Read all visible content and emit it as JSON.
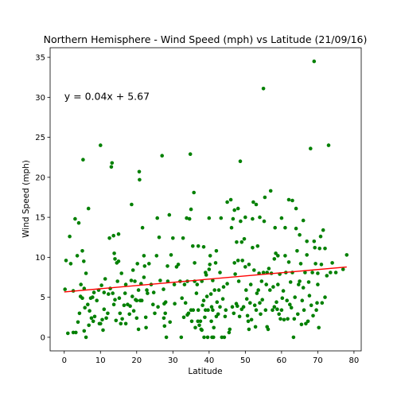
{
  "chart_data": {
    "type": "scatter",
    "title": "Northern Hemisphere - Wind Speed (mph) vs Latitude (21/09/16)",
    "xlabel": "Latitude",
    "ylabel": "Wind Speed (mph)",
    "xlim": [
      -3.9,
      82
    ],
    "ylim": [
      -1.7,
      36.2
    ],
    "xticks": [
      0,
      10,
      20,
      30,
      40,
      50,
      60,
      70,
      80
    ],
    "yticks": [
      0,
      5,
      10,
      15,
      20,
      25,
      30,
      35
    ],
    "grid": false,
    "colors": {
      "points": "#008000",
      "regression": "#ff0000",
      "annotation": "#ff0000"
    },
    "annotation": {
      "text": "y = 0.04x + 5.67",
      "x": 0,
      "y": 30.2
    },
    "regression": {
      "slope": 0.04,
      "intercept": 5.67,
      "x_range": [
        0,
        78
      ]
    },
    "points": [
      [
        0.2,
        6.0
      ],
      [
        0.5,
        9.6
      ],
      [
        1,
        0.5
      ],
      [
        1.5,
        12.6
      ],
      [
        1.8,
        9.2
      ],
      [
        2.5,
        5.8
      ],
      [
        2.5,
        0.6
      ],
      [
        3,
        14.8
      ],
      [
        3.2,
        0.6
      ],
      [
        3.6,
        10.2
      ],
      [
        3.8,
        1.9
      ],
      [
        4.0,
        14.3
      ],
      [
        4.2,
        3.0
      ],
      [
        4.5,
        5.1
      ],
      [
        4.6,
        6.6
      ],
      [
        5,
        4.9
      ],
      [
        5,
        10.8
      ],
      [
        5.2,
        22.2
      ],
      [
        5.4,
        9.5
      ],
      [
        5.5,
        6.1
      ],
      [
        5.5,
        0.8
      ],
      [
        5.7,
        3.7
      ],
      [
        6,
        0.0
      ],
      [
        6,
        8.0
      ],
      [
        6.5,
        4.1
      ],
      [
        6.7,
        16.1
      ],
      [
        6.8,
        1.5
      ],
      [
        7,
        3.3
      ],
      [
        7.3,
        4.9
      ],
      [
        7.5,
        2.4
      ],
      [
        7.8,
        5.0
      ],
      [
        8,
        2.0
      ],
      [
        8.2,
        5.6
      ],
      [
        8.4,
        2.6
      ],
      [
        9,
        4.6
      ],
      [
        9.5,
        5.9
      ],
      [
        9.7,
        1.7
      ],
      [
        10,
        24.0
      ],
      [
        10,
        1.7
      ],
      [
        10.3,
        6.5
      ],
      [
        10.5,
        2.2
      ],
      [
        10.7,
        0.9
      ],
      [
        11,
        3.5
      ],
      [
        11,
        5.6
      ],
      [
        11.3,
        7.3
      ],
      [
        11.6,
        2.4
      ],
      [
        12,
        3.0
      ],
      [
        12.2,
        5.4
      ],
      [
        12.5,
        12.4
      ],
      [
        12.7,
        6.1
      ],
      [
        13,
        21.3
      ],
      [
        13.2,
        21.8
      ],
      [
        13.4,
        5.5
      ],
      [
        13.6,
        12.7
      ],
      [
        13.7,
        4.1
      ],
      [
        13.8,
        10.5
      ],
      [
        14,
        9.8
      ],
      [
        14,
        4.7
      ],
      [
        14.3,
        2.1
      ],
      [
        14.5,
        9.3
      ],
      [
        14.7,
        7.0
      ],
      [
        15,
        12.9
      ],
      [
        15,
        9.5
      ],
      [
        15.2,
        4.9
      ],
      [
        15.4,
        3.0
      ],
      [
        15.6,
        1.7
      ],
      [
        15.8,
        8.0
      ],
      [
        16,
        2.3
      ],
      [
        16.5,
        4.0
      ],
      [
        16.8,
        5.5
      ],
      [
        17,
        1.7
      ],
      [
        17,
        6.6
      ],
      [
        17.5,
        4.1
      ],
      [
        18,
        2.9
      ],
      [
        18.2,
        3.9
      ],
      [
        18.5,
        7.1
      ],
      [
        18.6,
        16.6
      ],
      [
        18.8,
        5.1
      ],
      [
        19,
        8.4
      ],
      [
        19.2,
        3.3
      ],
      [
        19.5,
        7.0
      ],
      [
        19.7,
        4.7
      ],
      [
        20,
        4.6
      ],
      [
        20,
        2.4
      ],
      [
        20.2,
        9.2
      ],
      [
        20.5,
        5.9
      ],
      [
        20.5,
        1.0
      ],
      [
        20.7,
        20.7
      ],
      [
        20.8,
        19.7
      ],
      [
        21.0,
        4.6
      ],
      [
        21.2,
        6.7
      ],
      [
        21.4,
        4.6
      ],
      [
        21.6,
        13.7
      ],
      [
        22,
        10.2
      ],
      [
        22,
        7.5
      ],
      [
        22.2,
        8.9
      ],
      [
        22.5,
        2.5
      ],
      [
        22.6,
        1.2
      ],
      [
        22.8,
        5.9
      ],
      [
        23,
        5.5
      ],
      [
        23.4,
        9.2
      ],
      [
        24,
        6.6
      ],
      [
        24.5,
        4.1
      ],
      [
        24.7,
        5.6
      ],
      [
        25,
        3.0
      ],
      [
        25.5,
        10.2
      ],
      [
        25.7,
        14.9
      ],
      [
        25.9,
        3.8
      ],
      [
        26.2,
        12.5
      ],
      [
        26.5,
        7.1
      ],
      [
        27,
        22.7
      ],
      [
        27.4,
        6.0
      ],
      [
        27.5,
        2.4
      ],
      [
        27.6,
        4.2
      ],
      [
        27.7,
        1.4
      ],
      [
        27.9,
        3.0
      ],
      [
        28,
        4.4
      ],
      [
        28.2,
        0.0
      ],
      [
        28.5,
        8.9
      ],
      [
        28.6,
        7.0
      ],
      [
        29,
        15.3
      ],
      [
        29.2,
        1.9
      ],
      [
        29.5,
        10.3
      ],
      [
        30,
        12.4
      ],
      [
        30.4,
        6.6
      ],
      [
        30.5,
        4.2
      ],
      [
        31,
        8.8
      ],
      [
        31.5,
        9.1
      ],
      [
        32,
        7.0
      ],
      [
        32.3,
        0.0
      ],
      [
        32.5,
        4.9
      ],
      [
        32.8,
        12.4
      ],
      [
        33,
        2.5
      ],
      [
        33.2,
        6.6
      ],
      [
        33.5,
        4.3
      ],
      [
        33.8,
        14.9
      ],
      [
        34,
        2.8
      ],
      [
        34,
        7.0
      ],
      [
        34.3,
        3.0
      ],
      [
        34.6,
        14.8
      ],
      [
        34.8,
        22.9
      ],
      [
        35,
        16.0
      ],
      [
        35,
        3.4
      ],
      [
        35.2,
        2.0
      ],
      [
        35.5,
        11.4
      ],
      [
        35.6,
        3.4
      ],
      [
        35.8,
        18.1
      ],
      [
        36,
        9.3
      ],
      [
        36,
        7.0
      ],
      [
        36.2,
        1.2
      ],
      [
        36.5,
        5.5
      ],
      [
        36.7,
        6.6
      ],
      [
        36.9,
        2.0
      ],
      [
        37,
        3.4
      ],
      [
        37,
        11.4
      ],
      [
        37.3,
        1.5
      ],
      [
        37.6,
        2.0
      ],
      [
        37.8,
        1.0
      ],
      [
        38,
        7.0
      ],
      [
        38,
        0.9
      ],
      [
        38.2,
        4.0
      ],
      [
        38.5,
        11.3
      ],
      [
        38.5,
        4.6
      ],
      [
        38.6,
        0.0
      ],
      [
        38.8,
        2.5
      ],
      [
        39,
        3.4
      ],
      [
        39,
        8.1
      ],
      [
        39.2,
        7.8
      ],
      [
        39.4,
        5.1
      ],
      [
        39.6,
        0.0
      ],
      [
        39.7,
        3.4
      ],
      [
        40,
        8.5
      ],
      [
        40,
        14.9
      ],
      [
        40.2,
        9.1
      ],
      [
        40.3,
        10.2
      ],
      [
        40.5,
        5.4
      ],
      [
        40.6,
        2.0
      ],
      [
        40.7,
        3.8
      ],
      [
        40.8,
        0.0
      ],
      [
        41,
        7.1
      ],
      [
        41,
        3.4
      ],
      [
        41.2,
        0.0
      ],
      [
        41.3,
        1.2
      ],
      [
        41.5,
        5.9
      ],
      [
        41.8,
        9.3
      ],
      [
        42,
        10.8
      ],
      [
        42,
        2.6
      ],
      [
        42.2,
        4.4
      ],
      [
        42.5,
        2.9
      ],
      [
        42.7,
        5.9
      ],
      [
        43,
        8.1
      ],
      [
        43,
        3.8
      ],
      [
        43.3,
        14.9
      ],
      [
        43.5,
        0.0
      ],
      [
        43.8,
        4.8
      ],
      [
        44,
        6.3
      ],
      [
        44.2,
        0.0
      ],
      [
        44.4,
        2.6
      ],
      [
        44.6,
        3.4
      ],
      [
        45,
        6.7
      ],
      [
        45,
        16.9
      ],
      [
        45.5,
        0.6
      ],
      [
        45.7,
        1.0
      ],
      [
        46,
        17.2
      ],
      [
        46.2,
        13.7
      ],
      [
        46.4,
        3.8
      ],
      [
        46.6,
        14.8
      ],
      [
        46.8,
        3.0
      ],
      [
        47,
        15.9
      ],
      [
        47,
        9.3
      ],
      [
        47.2,
        7.9
      ],
      [
        47.5,
        4.2
      ],
      [
        47.6,
        11.9
      ],
      [
        47.8,
        3.9
      ],
      [
        48,
        9.6
      ],
      [
        48,
        16.1
      ],
      [
        48.2,
        7.0
      ],
      [
        48.4,
        2.6
      ],
      [
        48.6,
        22.0
      ],
      [
        48.7,
        14.5
      ],
      [
        49,
        3.5
      ],
      [
        49,
        11.9
      ],
      [
        49.2,
        9.6
      ],
      [
        49.5,
        3.8
      ],
      [
        49.7,
        12.3
      ],
      [
        50,
        8.8
      ],
      [
        50,
        15.0
      ],
      [
        50.2,
        5.9
      ],
      [
        50.4,
        4.8
      ],
      [
        50.6,
        2.7
      ],
      [
        50.8,
        2.0
      ],
      [
        51,
        1.0
      ],
      [
        51,
        9.1
      ],
      [
        51.3,
        4.3
      ],
      [
        51.5,
        6.6
      ],
      [
        51.7,
        2.2
      ],
      [
        52,
        14.8
      ],
      [
        52,
        11.2
      ],
      [
        52.2,
        16.9
      ],
      [
        52.4,
        8.4
      ],
      [
        52.6,
        4.0
      ],
      [
        52.8,
        1.3
      ],
      [
        53,
        16.6
      ],
      [
        53,
        3.4
      ],
      [
        53.2,
        5.5
      ],
      [
        53.4,
        11.4
      ],
      [
        53.6,
        5.9
      ],
      [
        53.8,
        8.0
      ],
      [
        54,
        4.3
      ],
      [
        54,
        15.0
      ],
      [
        54.2,
        2.9
      ],
      [
        54.5,
        7.0
      ],
      [
        54.7,
        4.7
      ],
      [
        55,
        8.1
      ],
      [
        55,
        31.1
      ],
      [
        55.2,
        14.5
      ],
      [
        55.4,
        17.5
      ],
      [
        55.6,
        3.4
      ],
      [
        55.8,
        6.6
      ],
      [
        56,
        8.1
      ],
      [
        56,
        1.3
      ],
      [
        56.3,
        1.0
      ],
      [
        56.5,
        8.6
      ],
      [
        56.8,
        5.9
      ],
      [
        57,
        18.3
      ],
      [
        57.2,
        8.0
      ],
      [
        57.5,
        3.4
      ],
      [
        57.7,
        6.3
      ],
      [
        58,
        3.8
      ],
      [
        58,
        9.8
      ],
      [
        58.2,
        13.7
      ],
      [
        58.4,
        10.5
      ],
      [
        58.6,
        4.4
      ],
      [
        58.8,
        3.5
      ],
      [
        59,
        10.2
      ],
      [
        59,
        6.6
      ],
      [
        59.3,
        2.9
      ],
      [
        59.5,
        7.9
      ],
      [
        59.7,
        2.3
      ],
      [
        60,
        3.4
      ],
      [
        60,
        14.9
      ],
      [
        60.2,
        4.9
      ],
      [
        60.5,
        5.8
      ],
      [
        60.7,
        2.2
      ],
      [
        61,
        10.2
      ],
      [
        61,
        13.7
      ],
      [
        61.2,
        8.1
      ],
      [
        61.5,
        4.6
      ],
      [
        61.7,
        2.3
      ],
      [
        62,
        17.2
      ],
      [
        62,
        9.4
      ],
      [
        62.3,
        4.1
      ],
      [
        62.5,
        6.9
      ],
      [
        62.7,
        3.7
      ],
      [
        63,
        17.1
      ],
      [
        63,
        8.1
      ],
      [
        63.3,
        0.0
      ],
      [
        63.5,
        2.3
      ],
      [
        63.7,
        5.0
      ],
      [
        64,
        13.6
      ],
      [
        64,
        16.1
      ],
      [
        64.3,
        10.8
      ],
      [
        64.5,
        2.9
      ],
      [
        64.7,
        6.6
      ],
      [
        65,
        7.0
      ],
      [
        65,
        12.8
      ],
      [
        65.3,
        9.2
      ],
      [
        65.5,
        1.6
      ],
      [
        65.7,
        4.6
      ],
      [
        66,
        14.6
      ],
      [
        66,
        6.2
      ],
      [
        66.2,
        3.4
      ],
      [
        66.5,
        8.1
      ],
      [
        66.7,
        1.7
      ],
      [
        67,
        10.3
      ],
      [
        67,
        12.0
      ],
      [
        67.3,
        2.0
      ],
      [
        67.5,
        6.9
      ],
      [
        67.7,
        5.2
      ],
      [
        68,
        23.6
      ],
      [
        68.2,
        4.0
      ],
      [
        68.5,
        8.1
      ],
      [
        68.7,
        2.7
      ],
      [
        69,
        34.5
      ],
      [
        69,
        12.0
      ],
      [
        69.2,
        11.2
      ],
      [
        69.4,
        9.2
      ],
      [
        69.6,
        3.4
      ],
      [
        69.8,
        4.3
      ],
      [
        70,
        6.6
      ],
      [
        70,
        8.0
      ],
      [
        70.3,
        1.2
      ],
      [
        70.5,
        11.1
      ],
      [
        70.8,
        12.6
      ],
      [
        71,
        9.1
      ],
      [
        71.2,
        4.3
      ],
      [
        71.5,
        13.4
      ],
      [
        72,
        11.1
      ],
      [
        72,
        5.0
      ],
      [
        72.5,
        7.7
      ],
      [
        73,
        24.0
      ],
      [
        73.5,
        8.1
      ],
      [
        74,
        9.3
      ],
      [
        75,
        8.1
      ],
      [
        77,
        8.5
      ],
      [
        78,
        10.3
      ]
    ]
  }
}
